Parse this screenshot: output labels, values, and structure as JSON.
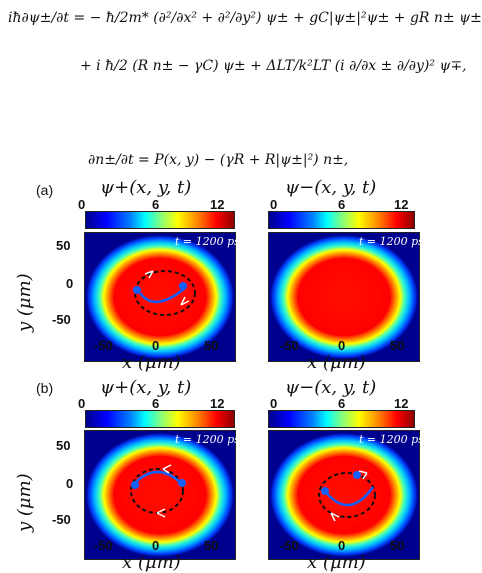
{
  "equations": {
    "line1": "iħ∂ψ±/∂t = − ħ/2m* (∂²/∂x² + ∂²/∂y²) ψ± + gC|ψ±|²ψ± + gR n± ψ±",
    "line2": "+ i ħ/2 (R n± − γC) ψ± + ΔLT/k²LT (i ∂/∂x ± ∂/∂y)² ψ∓,",
    "line3": "∂n±/∂t = P(x, y) − (γR + R|ψ±|²) n±,"
  },
  "panels": {
    "a_label": "(a)",
    "b_label": "(b)",
    "title_plus": "ψ+(x, y, t)",
    "title_minus": "ψ−(x, y, t)",
    "cbar_ticks": [
      "0",
      "6",
      "12"
    ],
    "time_label": "t = 1200 ps",
    "y_ticks": [
      "50",
      "0",
      "-50"
    ],
    "x_ticks": [
      "-50",
      "0",
      "50"
    ],
    "xlabel": "x (μm)",
    "ylabel": "y (μm)"
  },
  "colors": {
    "background": "#00008f",
    "ring": "#ff0000",
    "vortex": "#1060ff"
  }
}
